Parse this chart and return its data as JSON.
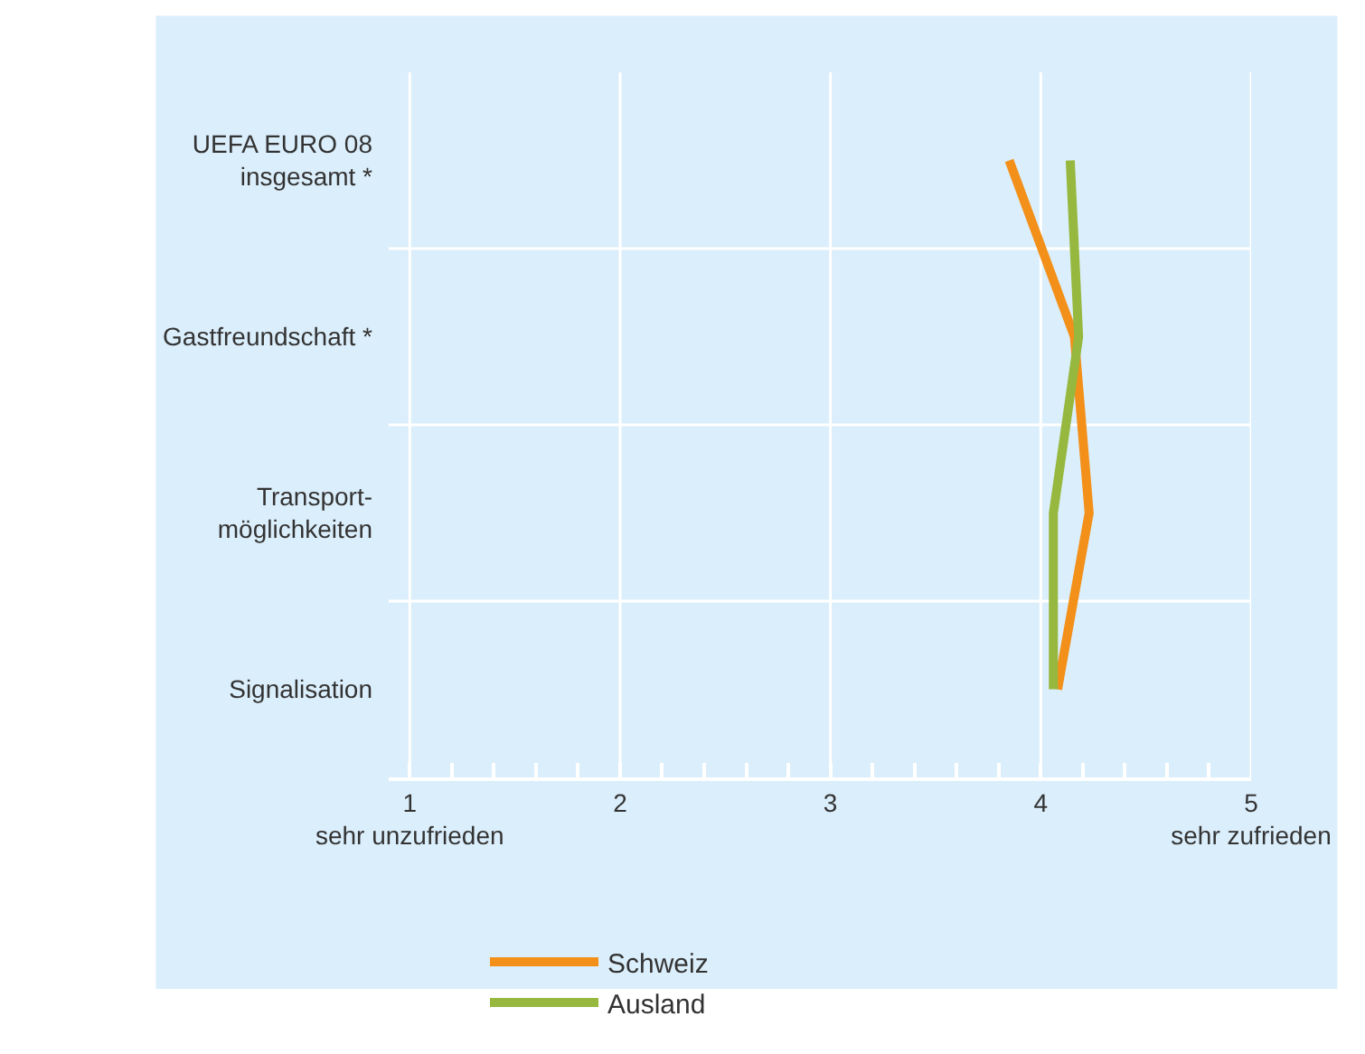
{
  "chart_data": {
    "type": "line",
    "orientation": "horizontal",
    "categories": [
      "UEFA EURO 08\ninsgesamt *",
      "Gastfreundschaft *",
      "Transport-\nmöglichkeiten",
      "Signalisation"
    ],
    "series": [
      {
        "name": "Schweiz",
        "color": "#f39019",
        "values": [
          3.85,
          4.16,
          4.23,
          4.08
        ]
      },
      {
        "name": "Ausland",
        "color": "#96b83e",
        "values": [
          4.14,
          4.18,
          4.06,
          4.06
        ]
      }
    ],
    "xlim": [
      0.9,
      5
    ],
    "xticks": [
      {
        "value": 1,
        "label": "1\nsehr unzufrieden"
      },
      {
        "value": 1.2,
        "label": null
      },
      {
        "value": 1.4,
        "label": null
      },
      {
        "value": 1.6,
        "label": null
      },
      {
        "value": 1.8,
        "label": null
      },
      2,
      {
        "value": 2.2,
        "label": null
      },
      {
        "value": 2.4,
        "label": null
      },
      {
        "value": 2.6,
        "label": null
      },
      {
        "value": 2.8,
        "label": null
      },
      3,
      {
        "value": 3.2,
        "label": null
      },
      {
        "value": 3.4,
        "label": null
      },
      {
        "value": 3.6,
        "label": null
      },
      {
        "value": 3.8,
        "label": null
      },
      4,
      {
        "value": 4.2,
        "label": null
      },
      {
        "value": 4.4,
        "label": null
      },
      {
        "value": 4.6,
        "label": null
      },
      {
        "value": 4.8,
        "label": null
      },
      {
        "value": 5,
        "label": "5\nsehr zufrieden"
      }
    ],
    "grid": true,
    "legend": "bottom",
    "marker": "none",
    "line_style": "solid"
  }
}
